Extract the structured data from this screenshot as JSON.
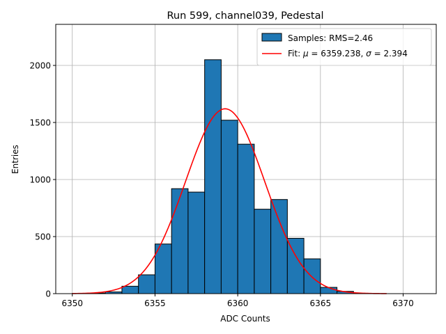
{
  "chart_data": {
    "type": "bar",
    "title": "Run 599, channel039, Pedestal",
    "xlabel": "ADC Counts",
    "ylabel": "Entries",
    "xlim": [
      6349.0,
      6372.0
    ],
    "ylim": [
      0,
      2360
    ],
    "xticks": [
      6350,
      6355,
      6360,
      6365,
      6370
    ],
    "yticks": [
      0,
      500,
      1000,
      1500,
      2000
    ],
    "grid": true,
    "legend_position": "top-right",
    "colors": {
      "bar_fill": "#1f77b4",
      "bar_edge": "#000000",
      "fit_line": "#ff0000",
      "grid": "#b0b0b0"
    },
    "histogram": {
      "name": "Samples: RMS=2.46",
      "bin_width": 1,
      "bins": [
        6350,
        6351,
        6352,
        6353,
        6354,
        6355,
        6356,
        6357,
        6358,
        6359,
        6360,
        6361,
        6362,
        6363,
        6364,
        6365,
        6366
      ],
      "counts": [
        2,
        5,
        15,
        65,
        165,
        435,
        920,
        890,
        2050,
        1520,
        1310,
        740,
        825,
        485,
        305,
        55,
        20
      ]
    },
    "fit": {
      "name_prefix": "Fit: ",
      "mu_symbol": "μ",
      "sigma_symbol": "σ",
      "mu_value": "6359.238",
      "sigma_value": "2.394",
      "mu": 6359.238,
      "sigma": 2.394,
      "amplitude": 1620,
      "x_range": [
        6350.0,
        6369.0
      ]
    }
  }
}
